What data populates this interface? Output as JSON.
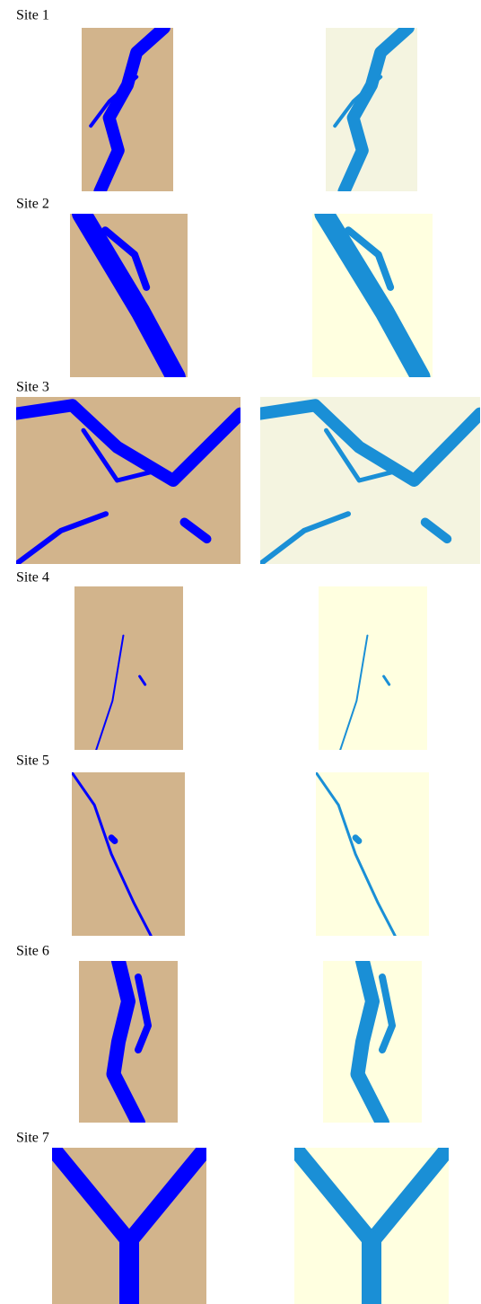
{
  "sites": [
    {
      "label": "Site 1"
    },
    {
      "label": "Site 2"
    },
    {
      "label": "Site 3"
    },
    {
      "label": "Site 4"
    },
    {
      "label": "Site 5"
    },
    {
      "label": "Site 6"
    },
    {
      "label": "Site 7"
    }
  ]
}
